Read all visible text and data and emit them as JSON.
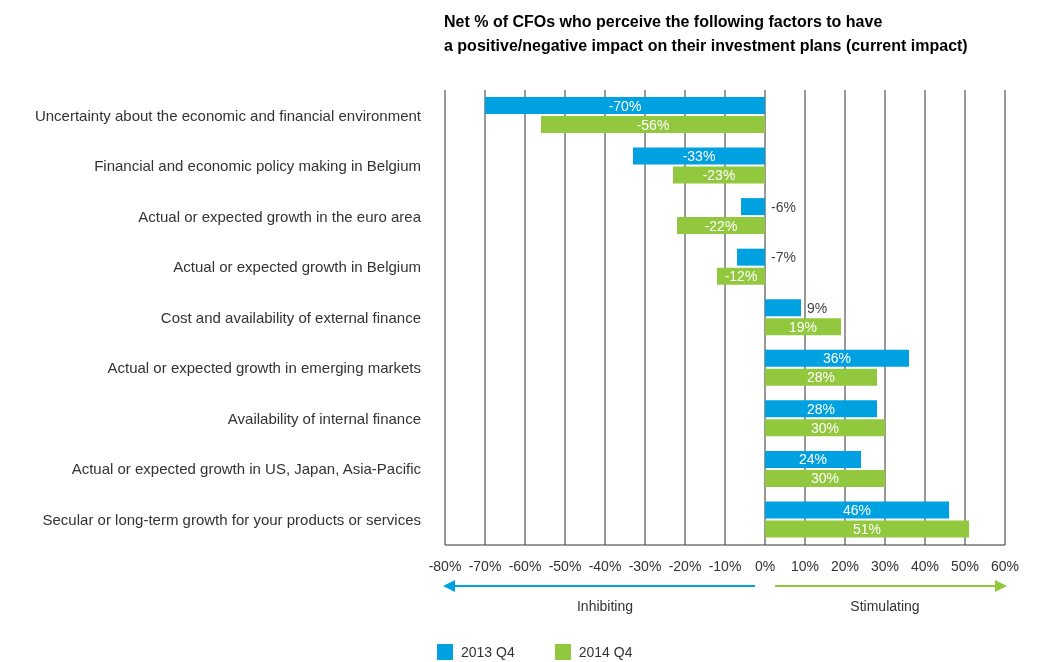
{
  "chart_data": {
    "type": "bar",
    "orientation": "horizontal",
    "title": "Net % of CFOs who perceive the following factors to have\na positive/negative impact on their investment plans (current impact)",
    "categories": [
      "Uncertainty about the economic and financial environment",
      "Financial and economic policy making in Belgium",
      "Actual or expected growth in the euro area",
      "Actual or expected growth in Belgium",
      "Cost and availability of external finance",
      "Actual or expected growth in emerging markets",
      "Availability of internal finance",
      "Actual or expected growth in US, Japan, Asia-Pacific",
      "Secular or long-term growth for your products or services"
    ],
    "series": [
      {
        "name": "2013 Q4",
        "color": "#00a1e0",
        "values": [
          -70,
          -33,
          -6,
          -7,
          9,
          36,
          28,
          24,
          46
        ],
        "value_labels": [
          "-70%",
          "-33%",
          "-6%",
          "-7%",
          "9%",
          "36%",
          "28%",
          "24%",
          "46%"
        ]
      },
      {
        "name": "2014 Q4",
        "color": "#92c83e",
        "values": [
          -56,
          -23,
          -22,
          -12,
          19,
          28,
          30,
          30,
          51
        ],
        "value_labels": [
          "-56%",
          "-23%",
          "-22%",
          "-12%",
          "19%",
          "28%",
          "30%",
          "30%",
          "51%"
        ]
      }
    ],
    "xlim": [
      -80,
      60
    ],
    "xticks": [
      {
        "value": -80,
        "label": "-80%"
      },
      {
        "value": -70,
        "label": "-70%"
      },
      {
        "value": -60,
        "label": "-60%"
      },
      {
        "value": -50,
        "label": "-50%"
      },
      {
        "value": -40,
        "label": "-40%"
      },
      {
        "value": -30,
        "label": "-30%"
      },
      {
        "value": -20,
        "label": "-20%"
      },
      {
        "value": -10,
        "label": "-10%"
      },
      {
        "value": 0,
        "label": "0%"
      },
      {
        "value": 10,
        "label": "10%"
      },
      {
        "value": 20,
        "label": "20%"
      },
      {
        "value": 30,
        "label": "30%"
      },
      {
        "value": 40,
        "label": "40%"
      },
      {
        "value": 50,
        "label": "50%"
      },
      {
        "value": 60,
        "label": "60%"
      }
    ],
    "grid": "x",
    "legend": "bottom left",
    "annotations": [
      "Inhibiting",
      "Stimulating"
    ]
  }
}
